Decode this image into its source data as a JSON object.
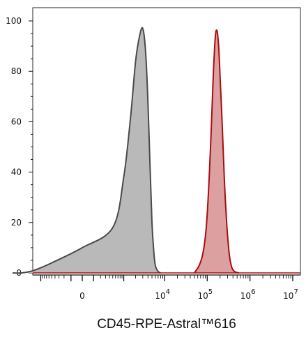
{
  "chart_data": {
    "type": "area",
    "title": "",
    "xlabel": "CD45-RPE-Astral™616",
    "ylabel": "",
    "x_scale": "biexponential",
    "ylim": [
      0,
      104
    ],
    "y_ticks": [
      {
        "value": 0,
        "label": "0"
      },
      {
        "value": 20,
        "label": "20"
      },
      {
        "value": 40,
        "label": "40"
      },
      {
        "value": 60,
        "label": "60"
      },
      {
        "value": 80,
        "label": "80"
      },
      {
        "value": 100,
        "label": "100"
      }
    ],
    "x_ticks": [
      {
        "value": "0",
        "base": "0",
        "exp": ""
      },
      {
        "value": "1e4",
        "base": "10",
        "exp": "4"
      },
      {
        "value": "1e5",
        "base": "10",
        "exp": "5"
      },
      {
        "value": "1e6",
        "base": "10",
        "exp": "6"
      },
      {
        "value": "1e7",
        "base": "10",
        "exp": "7"
      }
    ],
    "grid": false,
    "legend": "none",
    "series": [
      {
        "color_fill": "#b9b9b9",
        "color_line": "#4a4a4a",
        "x": [
          -5000,
          -3000,
          -1500,
          -500,
          0,
          500,
          1000,
          1500,
          2000,
          2500,
          3000,
          3500,
          4000,
          4500,
          5000,
          5500,
          6000,
          7000,
          8000
        ],
        "y": [
          0,
          0,
          1,
          4,
          10,
          18,
          38,
          62,
          84,
          94,
          97,
          88,
          68,
          42,
          20,
          9,
          3,
          0.6,
          0
        ]
      },
      {
        "color_fill": "#dda0a0",
        "color_line": "#a80d10",
        "x": [
          50000,
          65000,
          80000,
          95000,
          110000,
          125000,
          140000,
          155000,
          170000,
          185000,
          200000,
          220000,
          240000,
          260000,
          290000,
          330000,
          380000,
          450000,
          550000
        ],
        "y": [
          0,
          3,
          8,
          18,
          36,
          58,
          80,
          94,
          96,
          90,
          78,
          62,
          46,
          32,
          18,
          7,
          2,
          0.4,
          0
        ]
      }
    ]
  }
}
